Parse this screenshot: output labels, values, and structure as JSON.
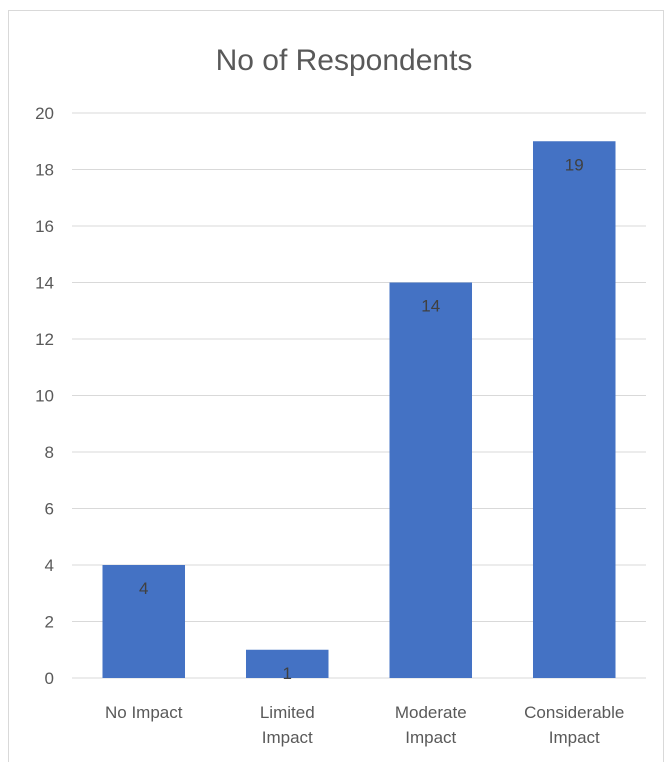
{
  "chart_data": {
    "type": "bar",
    "title": "No of Respondents",
    "xlabel": "",
    "ylabel": "",
    "categories": [
      [
        "No Impact"
      ],
      [
        "Limited",
        "Impact"
      ],
      [
        "Moderate",
        "Impact"
      ],
      [
        "Considerable",
        "Impact"
      ]
    ],
    "values": [
      4,
      1,
      14,
      19
    ],
    "ylim": [
      0,
      20
    ],
    "yticks": [
      0,
      2,
      4,
      6,
      8,
      10,
      12,
      14,
      16,
      18,
      20
    ],
    "grid": true,
    "legend": "none",
    "bar_color": "#4472C4",
    "grid_color": "#d9d9d9",
    "data_labels": true
  }
}
